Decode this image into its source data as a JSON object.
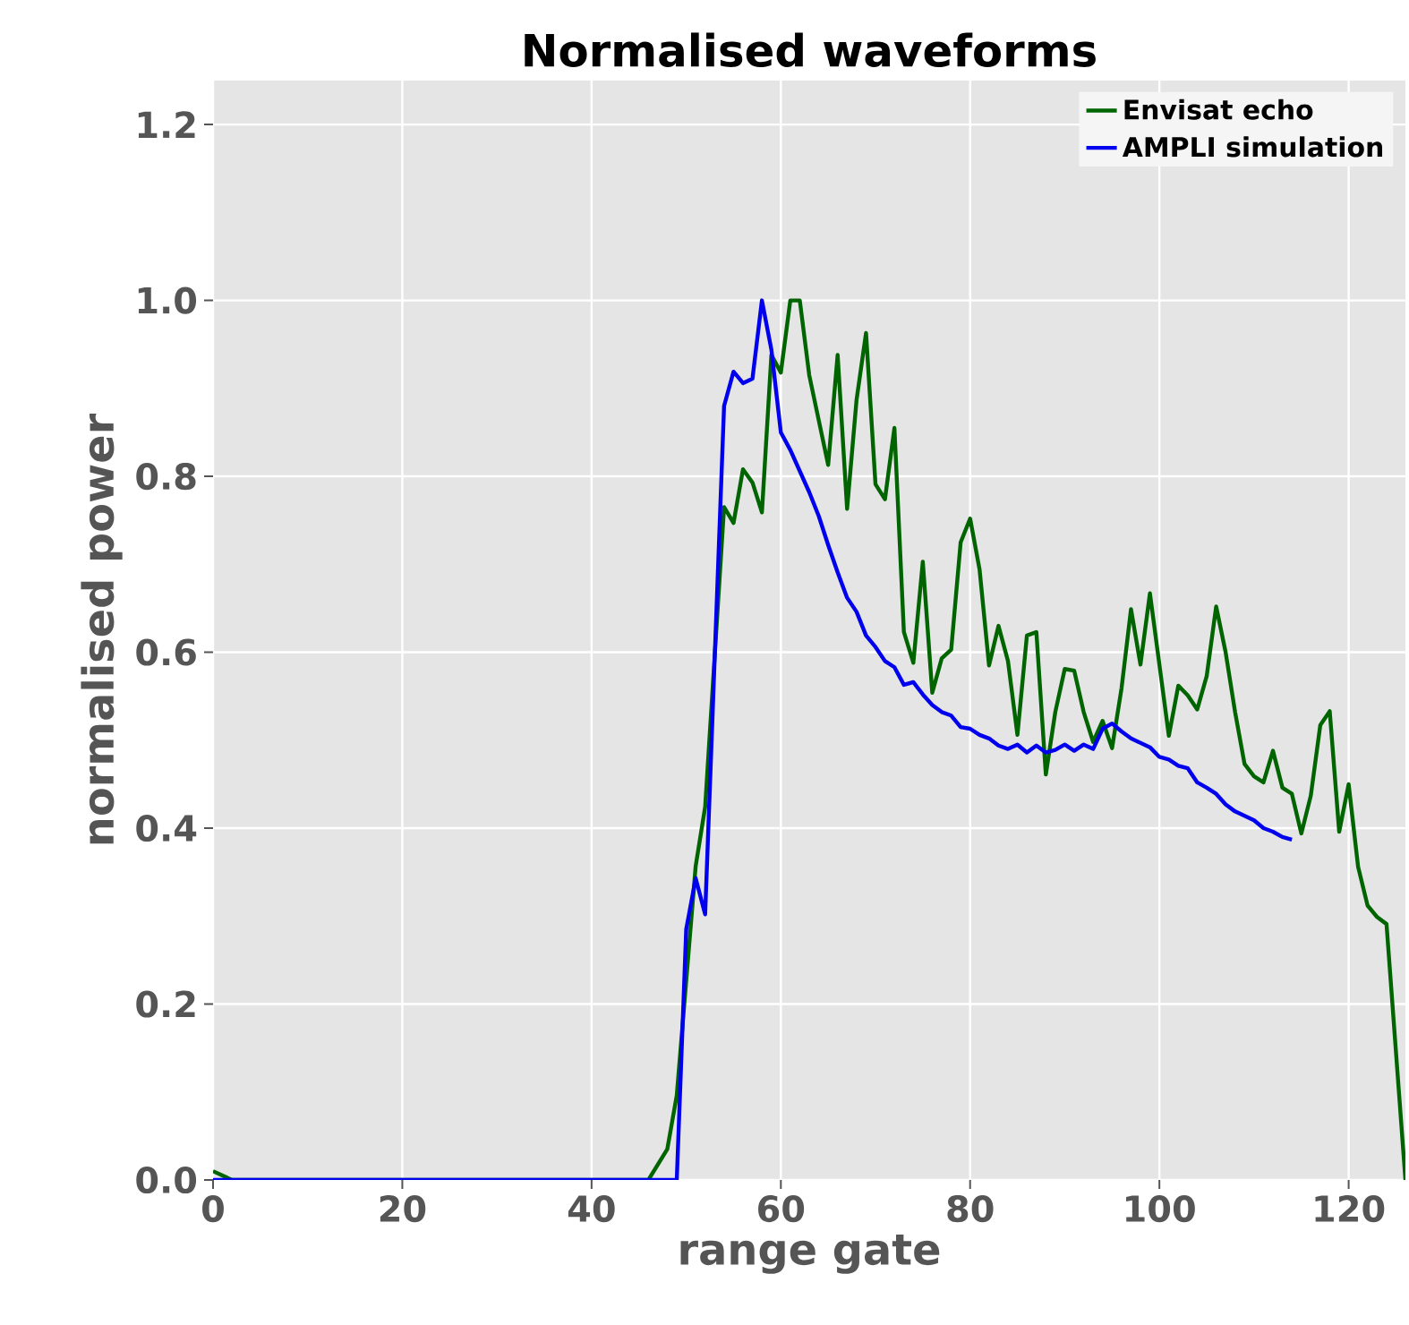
{
  "chart_data": {
    "type": "line",
    "title": "Normalised waveforms",
    "xlabel": "range gate",
    "ylabel": "normalised power",
    "xlim": [
      0,
      126
    ],
    "ylim": [
      0,
      1.25
    ],
    "xticks": [
      0,
      20,
      40,
      60,
      80,
      100,
      120
    ],
    "yticks": [
      {
        "value": 0,
        "label": "0.0"
      },
      {
        "value": 0.2,
        "label": "0.2"
      },
      {
        "value": 0.4,
        "label": "0.4"
      },
      {
        "value": 0.6,
        "label": "0.6"
      },
      {
        "value": 0.8,
        "label": "0.8"
      },
      {
        "value": 1.0,
        "label": "1.0"
      },
      {
        "value": 1.2,
        "label": "1.2"
      }
    ],
    "grid": true,
    "legend": "top right",
    "marker": "none",
    "line_style": "solid",
    "series": [
      {
        "name": "Envisat echo",
        "color": "#006400",
        "x": [
          0,
          2,
          46,
          48,
          49,
          51,
          52,
          54,
          55,
          56,
          57,
          58,
          59,
          60,
          61,
          62,
          63,
          65,
          66,
          67,
          68,
          69,
          70,
          71,
          72,
          73,
          74,
          75,
          76,
          77,
          78,
          79,
          80,
          81,
          82,
          83,
          84,
          85,
          86,
          87,
          88,
          89,
          90,
          91,
          92,
          93,
          94,
          95,
          96,
          97,
          98,
          99,
          100,
          101,
          102,
          103,
          104,
          105,
          106,
          107,
          108,
          109,
          110,
          111,
          112,
          113,
          114,
          115,
          116,
          117,
          118,
          119,
          120,
          121,
          122,
          123,
          124,
          126
        ],
        "values": [
          0.01,
          0,
          0,
          0.035,
          0.096,
          0.357,
          0.424,
          0.765,
          0.747,
          0.808,
          0.793,
          0.759,
          0.938,
          0.918,
          1.0,
          1.0,
          0.915,
          0.813,
          0.938,
          0.763,
          0.887,
          0.963,
          0.791,
          0.774,
          0.855,
          0.623,
          0.588,
          0.703,
          0.554,
          0.593,
          0.603,
          0.725,
          0.752,
          0.694,
          0.585,
          0.63,
          0.59,
          0.506,
          0.619,
          0.623,
          0.461,
          0.532,
          0.581,
          0.579,
          0.532,
          0.498,
          0.522,
          0.491,
          0.559,
          0.649,
          0.586,
          0.667,
          0.586,
          0.505,
          0.562,
          0.551,
          0.535,
          0.573,
          0.652,
          0.6,
          0.532,
          0.473,
          0.459,
          0.452,
          0.488,
          0.446,
          0.439,
          0.394,
          0.437,
          0.517,
          0.533,
          0.396,
          0.45,
          0.356,
          0.312,
          0.299,
          0.291,
          0
        ]
      },
      {
        "name": "AMPLI simulation",
        "color": "#0000ee",
        "x": [
          0,
          48,
          49,
          50,
          51,
          52,
          54,
          55,
          56,
          57,
          58,
          59,
          60,
          61,
          62,
          63,
          64,
          65,
          66,
          67,
          68,
          69,
          70,
          71,
          72,
          73,
          74,
          75,
          76,
          77,
          78,
          79,
          80,
          81,
          82,
          83,
          84,
          85,
          86,
          87,
          88,
          89,
          90,
          91,
          92,
          93,
          94,
          95,
          96,
          97,
          98,
          99,
          100,
          101,
          102,
          103,
          104,
          105,
          106,
          107,
          108,
          109,
          110,
          111,
          112,
          113,
          114
        ],
        "values": [
          0,
          0,
          0,
          0.285,
          0.343,
          0.302,
          0.88,
          0.919,
          0.906,
          0.911,
          1.0,
          0.944,
          0.85,
          0.83,
          0.806,
          0.782,
          0.755,
          0.722,
          0.691,
          0.662,
          0.646,
          0.619,
          0.606,
          0.59,
          0.583,
          0.563,
          0.566,
          0.552,
          0.54,
          0.532,
          0.528,
          0.515,
          0.513,
          0.506,
          0.502,
          0.494,
          0.49,
          0.495,
          0.486,
          0.494,
          0.486,
          0.489,
          0.495,
          0.488,
          0.495,
          0.49,
          0.513,
          0.519,
          0.51,
          0.502,
          0.497,
          0.492,
          0.481,
          0.478,
          0.471,
          0.468,
          0.452,
          0.446,
          0.439,
          0.427,
          0.419,
          0.414,
          0.409,
          0.4,
          0.396,
          0.39,
          0.387
        ]
      }
    ]
  }
}
